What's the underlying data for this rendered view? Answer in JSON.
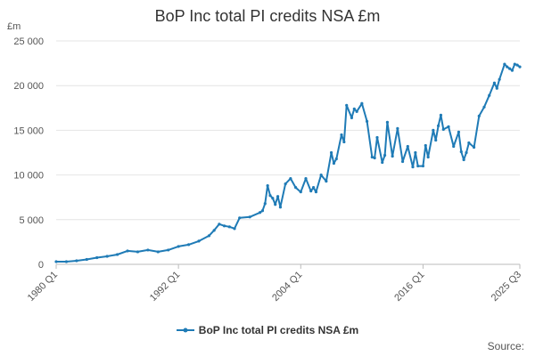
{
  "chart_data": {
    "type": "line",
    "title": "BoP Inc total PI credits NSA £m",
    "ylabel": "£m",
    "xlabel": "",
    "ylim": [
      0,
      25000
    ],
    "y_ticks": [
      0,
      5000,
      10000,
      15000,
      20000,
      25000
    ],
    "y_tick_labels": [
      "0",
      "5 000",
      "10 000",
      "15 000",
      "20 000",
      "25 000"
    ],
    "x_range": [
      1980,
      2025.5
    ],
    "x_ticks": [
      1980,
      1992,
      2004,
      2016,
      2025.5
    ],
    "x_tick_labels": [
      "1980 Q1",
      "1992 Q1",
      "2004 Q1",
      "2016 Q1",
      "2025 Q3"
    ],
    "grid": "horizontal",
    "legend_position": "bottom-center",
    "series": [
      {
        "name": "BoP Inc total PI credits NSA £m",
        "color": "#1f7bb6",
        "x": [
          1980,
          1981,
          1982,
          1983,
          1984,
          1985,
          1986,
          1987,
          1988,
          1989,
          1990,
          1991,
          1992,
          1993,
          1994,
          1995,
          1995.5,
          1996,
          1996.5,
          1997,
          1997.5,
          1998,
          1999,
          2000,
          2000.25,
          2000.5,
          2000.75,
          2001,
          2001.25,
          2001.5,
          2001.75,
          2002,
          2002.5,
          2003,
          2003.5,
          2004,
          2004.5,
          2005,
          2005.25,
          2005.5,
          2006,
          2006.5,
          2007,
          2007.25,
          2007.5,
          2008,
          2008.25,
          2008.5,
          2009,
          2009.25,
          2009.5,
          2010,
          2010.5,
          2011,
          2011.25,
          2011.5,
          2012,
          2012.25,
          2012.5,
          2013,
          2013.5,
          2014,
          2014.5,
          2015,
          2015.25,
          2015.5,
          2016,
          2016.25,
          2016.5,
          2017,
          2017.25,
          2017.5,
          2017.75,
          2018,
          2018.5,
          2019,
          2019.5,
          2019.75,
          2020,
          2020.25,
          2020.5,
          2021,
          2021.5,
          2022,
          2022.5,
          2023,
          2023.25,
          2023.5,
          2024,
          2024.25,
          2024.5,
          2024.75,
          2025,
          2025.25,
          2025.5
        ],
        "values": [
          300,
          300,
          400,
          550,
          750,
          900,
          1100,
          1500,
          1400,
          1600,
          1400,
          1600,
          2000,
          2200,
          2600,
          3200,
          3800,
          4500,
          4300,
          4200,
          4000,
          5200,
          5300,
          5800,
          6000,
          6800,
          8800,
          7700,
          7400,
          6700,
          7600,
          6400,
          9000,
          9600,
          8600,
          8100,
          9600,
          8200,
          8600,
          8100,
          10000,
          9300,
          12500,
          11300,
          11800,
          14500,
          13700,
          17800,
          16400,
          17400,
          17100,
          18000,
          16000,
          12000,
          11900,
          14200,
          11400,
          12200,
          15900,
          12100,
          15200,
          11500,
          13200,
          10900,
          12500,
          11000,
          11000,
          13300,
          12000,
          15000,
          13900,
          15500,
          16700,
          15100,
          15400,
          13200,
          14800,
          12600,
          11700,
          12500,
          13600,
          13100,
          16600,
          17600,
          18900,
          20300,
          19700,
          20700,
          22400,
          22100,
          21900,
          21700,
          22400,
          22300,
          22100
        ]
      }
    ]
  },
  "legend": {
    "label": "BoP Inc total PI credits NSA £m"
  },
  "footer": {
    "source_label": "Source:"
  }
}
